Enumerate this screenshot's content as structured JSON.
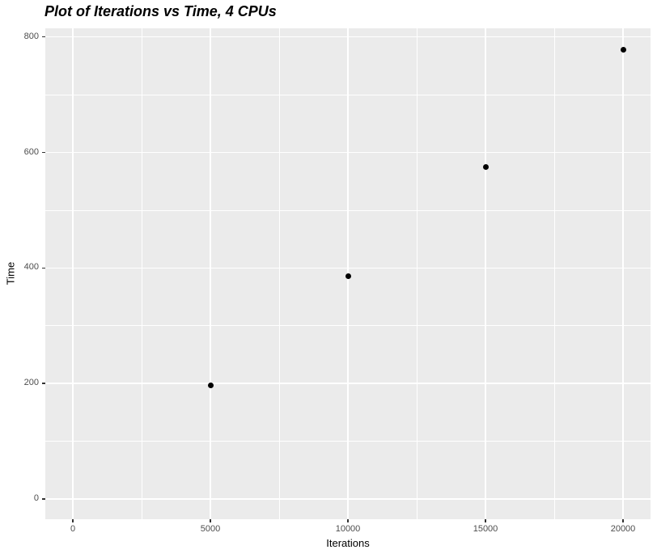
{
  "chart_data": {
    "type": "scatter",
    "title": "Plot of Iterations vs Time, 4 CPUs",
    "xlabel": "Iterations",
    "ylabel": "Time",
    "points": [
      {
        "x": 5000,
        "y": 197
      },
      {
        "x": 10000,
        "y": 386
      },
      {
        "x": 15000,
        "y": 575
      },
      {
        "x": 20000,
        "y": 778
      }
    ],
    "x_ticks": [
      0,
      5000,
      10000,
      15000,
      20000
    ],
    "y_ticks": [
      0,
      200,
      400,
      600,
      800
    ],
    "x_minor": [
      2500,
      7500,
      12500,
      17500
    ],
    "y_minor": [
      100,
      300,
      500,
      700
    ],
    "xlim": [
      -1000,
      21000
    ],
    "ylim": [
      -35,
      815
    ],
    "grid": "on",
    "legend": "none",
    "colors": {
      "background": "#FFFFFF",
      "panel_bg": "#EBEBEB",
      "grid": "#FFFFFF",
      "point": "#000000",
      "tick_label": "#4D4D4D",
      "tick_mark": "#333333",
      "axis_title": "#000000",
      "title": "#000000"
    }
  }
}
